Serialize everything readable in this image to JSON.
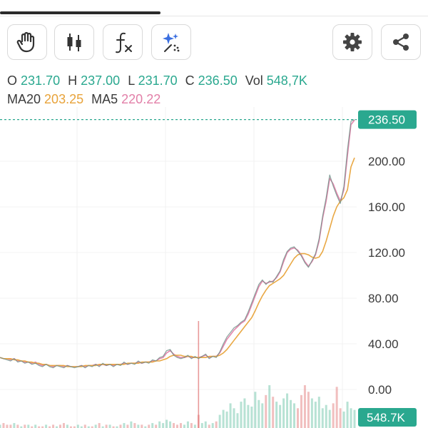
{
  "toolbar": {
    "left": [
      {
        "name": "hand-icon"
      },
      {
        "name": "candlestick-icon"
      },
      {
        "name": "function-icon"
      },
      {
        "name": "magic-sparkle-icon"
      }
    ],
    "right": [
      {
        "name": "gear-icon"
      },
      {
        "name": "share-icon"
      }
    ]
  },
  "ohlc": {
    "open_label": "O",
    "open": "231.70",
    "high_label": "H",
    "high": "237.00",
    "low_label": "L",
    "low": "231.70",
    "close_label": "C",
    "close": "236.50",
    "vol_label": "Vol",
    "vol": "548,7K"
  },
  "ma": {
    "ma20_label": "MA20",
    "ma20": "203.25",
    "ma5_label": "MA5",
    "ma5": "220.22"
  },
  "colors": {
    "teal": "#2aa88f",
    "ma20": "#e8a33a",
    "ma5": "#e27fa8",
    "up": "#5fbfa0",
    "down": "#e07070"
  },
  "chart_data": {
    "type": "line",
    "ylim": [
      0,
      250
    ],
    "y_ticks": [
      "200.00",
      "160.00",
      "120.00",
      "80.00",
      "40.00",
      "0.00"
    ],
    "y_tick_values": [
      200,
      160,
      120,
      80,
      40,
      0
    ],
    "current_price_label": "236.50",
    "current_price": 236.5,
    "volume_label": "548.7K",
    "series": [
      {
        "values": [
          28,
          27,
          27,
          26,
          27,
          25,
          25,
          24,
          24,
          23,
          24,
          22,
          21,
          22,
          21,
          20,
          21,
          21,
          20,
          21,
          20,
          20,
          20,
          21,
          20,
          21,
          21,
          22,
          21,
          22,
          21,
          22,
          21,
          22,
          22,
          23,
          22,
          23,
          23,
          24,
          23,
          24,
          24,
          25,
          25,
          27,
          28,
          32,
          34,
          31,
          29,
          28,
          28,
          29,
          28,
          28,
          28,
          29,
          30,
          28,
          29,
          29,
          32,
          38,
          44,
          48,
          52,
          55,
          58,
          60,
          66,
          74,
          82,
          90,
          95,
          93,
          94,
          95,
          98,
          103,
          112,
          120,
          123,
          124,
          122,
          118,
          112,
          108,
          112,
          118,
          130,
          150,
          165,
          185,
          180,
          172,
          165,
          175,
          205,
          232,
          236
        ]
      },
      {
        "values": [
          28,
          27,
          27,
          27,
          26,
          26,
          25,
          25,
          24,
          24,
          23,
          23,
          22,
          22,
          21,
          21,
          21,
          21,
          21,
          20,
          20,
          20,
          20,
          20,
          21,
          21,
          21,
          21,
          22,
          22,
          22,
          22,
          22,
          22,
          22,
          22,
          23,
          23,
          23,
          23,
          24,
          24,
          24,
          24,
          25,
          25,
          26,
          27,
          29,
          30,
          30,
          30,
          29,
          29,
          29,
          28,
          28,
          28,
          28,
          29,
          29,
          29,
          30,
          32,
          35,
          39,
          43,
          47,
          51,
          55,
          59,
          63,
          69,
          76,
          82,
          87,
          91,
          93,
          95,
          97,
          100,
          105,
          110,
          115,
          118,
          119,
          119,
          118,
          116,
          115,
          116,
          121,
          130,
          141,
          152,
          160,
          165,
          168,
          175,
          195,
          203
        ]
      },
      {
        "values": [
          28,
          27,
          26,
          25,
          27,
          24,
          25,
          23,
          24,
          22,
          23,
          21,
          20,
          22,
          20,
          19,
          21,
          20,
          19,
          21,
          20,
          19,
          20,
          21,
          19,
          21,
          20,
          22,
          20,
          23,
          21,
          22,
          20,
          22,
          21,
          24,
          22,
          23,
          22,
          25,
          23,
          24,
          23,
          26,
          25,
          28,
          29,
          34,
          35,
          30,
          28,
          27,
          28,
          30,
          27,
          29,
          27,
          29,
          31,
          27,
          29,
          28,
          33,
          40,
          46,
          50,
          54,
          56,
          59,
          61,
          68,
          76,
          84,
          92,
          96,
          92,
          95,
          94,
          99,
          104,
          114,
          121,
          124,
          125,
          121,
          117,
          111,
          107,
          113,
          119,
          132,
          152,
          168,
          188,
          178,
          170,
          163,
          178,
          210,
          235,
          236.5
        ]
      }
    ],
    "volume": [
      2,
      3,
      2,
      2,
      3,
      2,
      1,
      2,
      2,
      1,
      2,
      1,
      1,
      2,
      1,
      2,
      1,
      2,
      3,
      2,
      1,
      1,
      2,
      1,
      2,
      1,
      1,
      2,
      3,
      1,
      2,
      2,
      1,
      1,
      2,
      3,
      2,
      4,
      3,
      2,
      2,
      1,
      2,
      3,
      2,
      4,
      3,
      5,
      4,
      3,
      2,
      3,
      2,
      4,
      3,
      2,
      8,
      3,
      4,
      2,
      3,
      4,
      8,
      11,
      10,
      15,
      12,
      9,
      16,
      18,
      14,
      13,
      22,
      17,
      15,
      20,
      26,
      19,
      16,
      14,
      18,
      21,
      17,
      15,
      12,
      20,
      26,
      22,
      18,
      16,
      19,
      12,
      14,
      11,
      15,
      25,
      12,
      10,
      16,
      12,
      11
    ]
  }
}
